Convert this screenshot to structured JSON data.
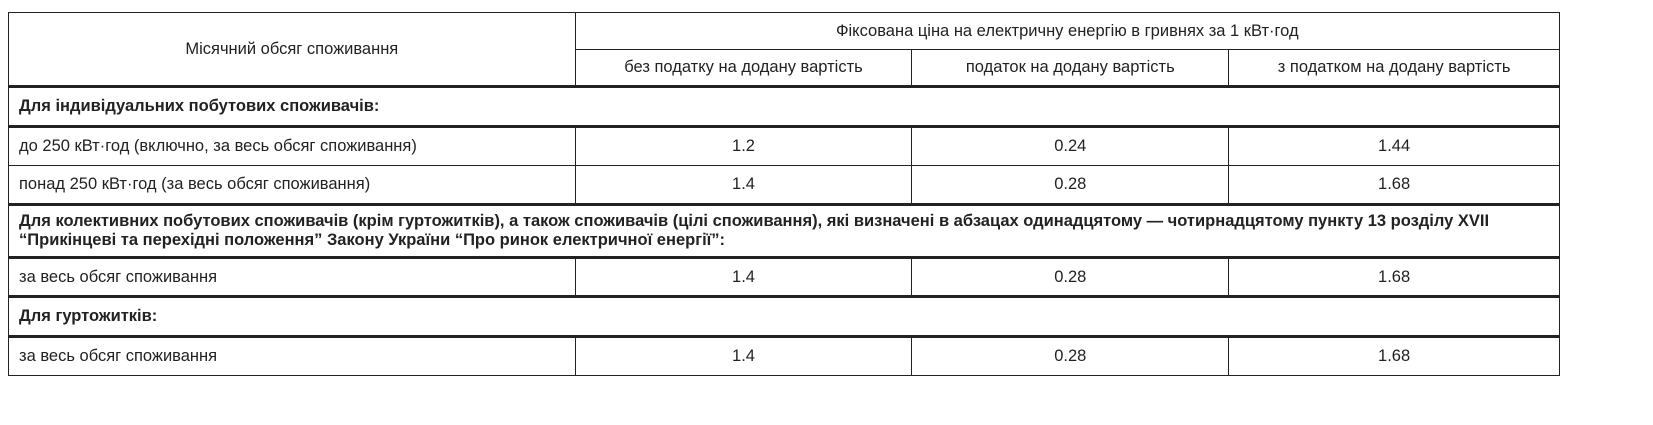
{
  "header": {
    "volume": "Місячний обсяг споживання",
    "price_group": "Фіксована ціна на електричну енергію в гривнях за 1 кВт·год",
    "columns": [
      "без податку на додану вартість",
      "податок на додану вартість",
      "з податком на додану вартість"
    ]
  },
  "sections": [
    {
      "title": "Для індивідуальних побутових споживачів:",
      "rows": [
        {
          "label": "до 250 кВт·год (включно, за весь обсяг споживання)",
          "values": [
            "1.2",
            "0.24",
            "1.44"
          ]
        },
        {
          "label": "понад 250 кВт·год (за весь обсяг споживання)",
          "values": [
            "1.4",
            "0.28",
            "1.68"
          ]
        }
      ]
    },
    {
      "title": "Для колективних побутових споживачів (крім гуртожитків), а також споживачів (цілі споживання), які визначені в абзацах одинадцятому — чотирнадцятому пункту 13 розділу XVII “Прикінцеві та перехідні положення” Закону України “Про ринок електричної енергії”:",
      "rows": [
        {
          "label": "за весь обсяг споживання",
          "values": [
            "1.4",
            "0.28",
            "1.68"
          ]
        }
      ]
    },
    {
      "title": "Для гуртожитків:",
      "rows": [
        {
          "label": "за весь обсяг споживання",
          "values": [
            "1.4",
            "0.28",
            "1.68"
          ]
        }
      ]
    }
  ]
}
